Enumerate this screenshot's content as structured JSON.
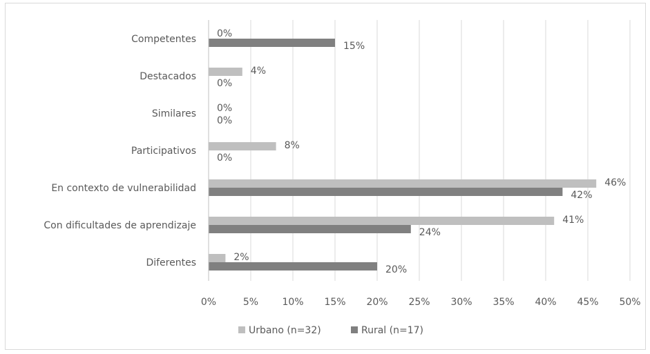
{
  "chart_data": {
    "type": "bar",
    "orientation": "horizontal",
    "categories": [
      "Competentes",
      "Destacados",
      "Similares",
      "Participativos",
      "En contexto de vulnerabilidad",
      "Con dificultades de aprendizaje",
      "Diferentes"
    ],
    "series": [
      {
        "name": "Urbano (n=32)",
        "color": "#bfbfbf",
        "values": [
          0,
          4,
          0,
          8,
          46,
          41,
          2
        ],
        "labels": [
          "0%",
          "4%",
          "0%",
          "8%",
          "46%",
          "41%",
          "2%"
        ]
      },
      {
        "name": "Rural (n=17)",
        "color": "#808080",
        "values": [
          15,
          0,
          0,
          0,
          42,
          24,
          20
        ],
        "labels": [
          "15%",
          "0%",
          "0%",
          "0%",
          "42%",
          "24%",
          "20%"
        ]
      }
    ],
    "x_ticks": [
      "0%",
      "5%",
      "10%",
      "15%",
      "20%",
      "25%",
      "30%",
      "35%",
      "40%",
      "45%",
      "50%"
    ],
    "xlim": [
      0,
      50
    ],
    "grid": true,
    "legend": "bottom"
  }
}
